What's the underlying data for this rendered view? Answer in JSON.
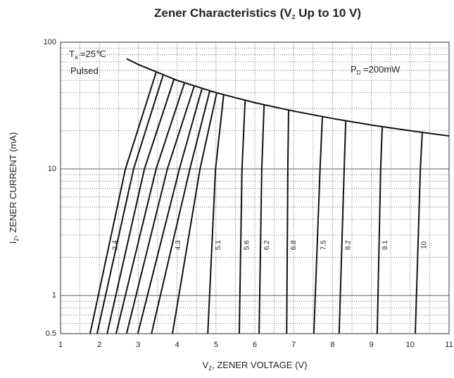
{
  "chart_data": {
    "type": "line",
    "title": [
      "Zener Characteristics (V",
      "Z",
      " Up to 10 V)"
    ],
    "x_label": [
      "V",
      "Z",
      ", ZENER VOLTAGE (V)"
    ],
    "y_label": [
      "I",
      "Z",
      ", ZENER CURRENT (mA)"
    ],
    "annotations": [
      [
        "T",
        "a",
        " =25℃"
      ],
      [
        "Pulsed"
      ],
      [
        "P",
        "D",
        " =200mW"
      ]
    ],
    "xlim": [
      1,
      11
    ],
    "xticks": [
      1,
      2,
      3,
      4,
      5,
      6,
      7,
      8,
      9,
      10,
      11
    ],
    "ylim": [
      0.5,
      100
    ],
    "yticks": [
      0.5,
      1,
      10,
      100
    ],
    "log_y": true,
    "grid": true,
    "color": "#111111",
    "series": [
      {
        "name": "2.4",
        "x": [
          1.76,
          2.67,
          3.46
        ],
        "y": [
          0.5,
          10,
          57.8
        ]
      },
      {
        "x": [
          1.94,
          2.88,
          3.64
        ],
        "y": [
          0.5,
          10,
          54.9
        ]
      },
      {
        "x": [
          2.2,
          3.16,
          3.92
        ],
        "y": [
          0.5,
          10,
          51
        ]
      },
      {
        "x": [
          2.43,
          3.46,
          4.19
        ],
        "y": [
          0.5,
          10,
          47.7
        ]
      },
      {
        "x": [
          2.7,
          3.75,
          4.44
        ],
        "y": [
          0.5,
          10,
          45
        ]
      },
      {
        "x": [
          2.99,
          4.06,
          4.64
        ],
        "y": [
          0.5,
          10,
          43.1
        ]
      },
      {
        "name": "4.3",
        "x": [
          3.34,
          4.33,
          4.84
        ],
        "y": [
          0.5,
          10,
          41.3
        ]
      },
      {
        "x": [
          3.88,
          4.59,
          5.02
        ],
        "y": [
          0.5,
          10,
          39.8
        ]
      },
      {
        "name": "5.1",
        "x": [
          4.79,
          4.99,
          5.2
        ],
        "y": [
          0.5,
          10,
          38.5
        ]
      },
      {
        "name": "5.6",
        "x": [
          5.6,
          5.67,
          5.75
        ],
        "y": [
          0.5,
          10,
          34.8
        ]
      },
      {
        "name": "6.2",
        "x": [
          6.11,
          6.18,
          6.24
        ],
        "y": [
          0.5,
          10,
          32
        ]
      },
      {
        "name": "6.8",
        "x": [
          6.82,
          6.85,
          6.87
        ],
        "y": [
          0.5,
          10,
          29.1
        ]
      },
      {
        "name": "7.5",
        "x": [
          7.52,
          7.68,
          7.74
        ],
        "y": [
          0.5,
          10,
          25.8
        ]
      },
      {
        "name": "8.2",
        "x": [
          8.17,
          8.3,
          8.34
        ],
        "y": [
          0.5,
          10,
          24
        ]
      },
      {
        "name": "9.1",
        "x": [
          9.15,
          9.24,
          9.28
        ],
        "y": [
          0.5,
          10,
          21.6
        ]
      },
      {
        "name": "10",
        "x": [
          10.13,
          10.26,
          10.31
        ],
        "y": [
          0.5,
          10,
          19.4
        ]
      }
    ],
    "power_curve": {
      "x": [
        2.7,
        3,
        4,
        5,
        6,
        7,
        8,
        9,
        10,
        11
      ],
      "y": [
        74.1,
        66.7,
        50,
        40,
        33.3,
        28.6,
        25,
        22.2,
        20,
        18.2
      ]
    }
  }
}
